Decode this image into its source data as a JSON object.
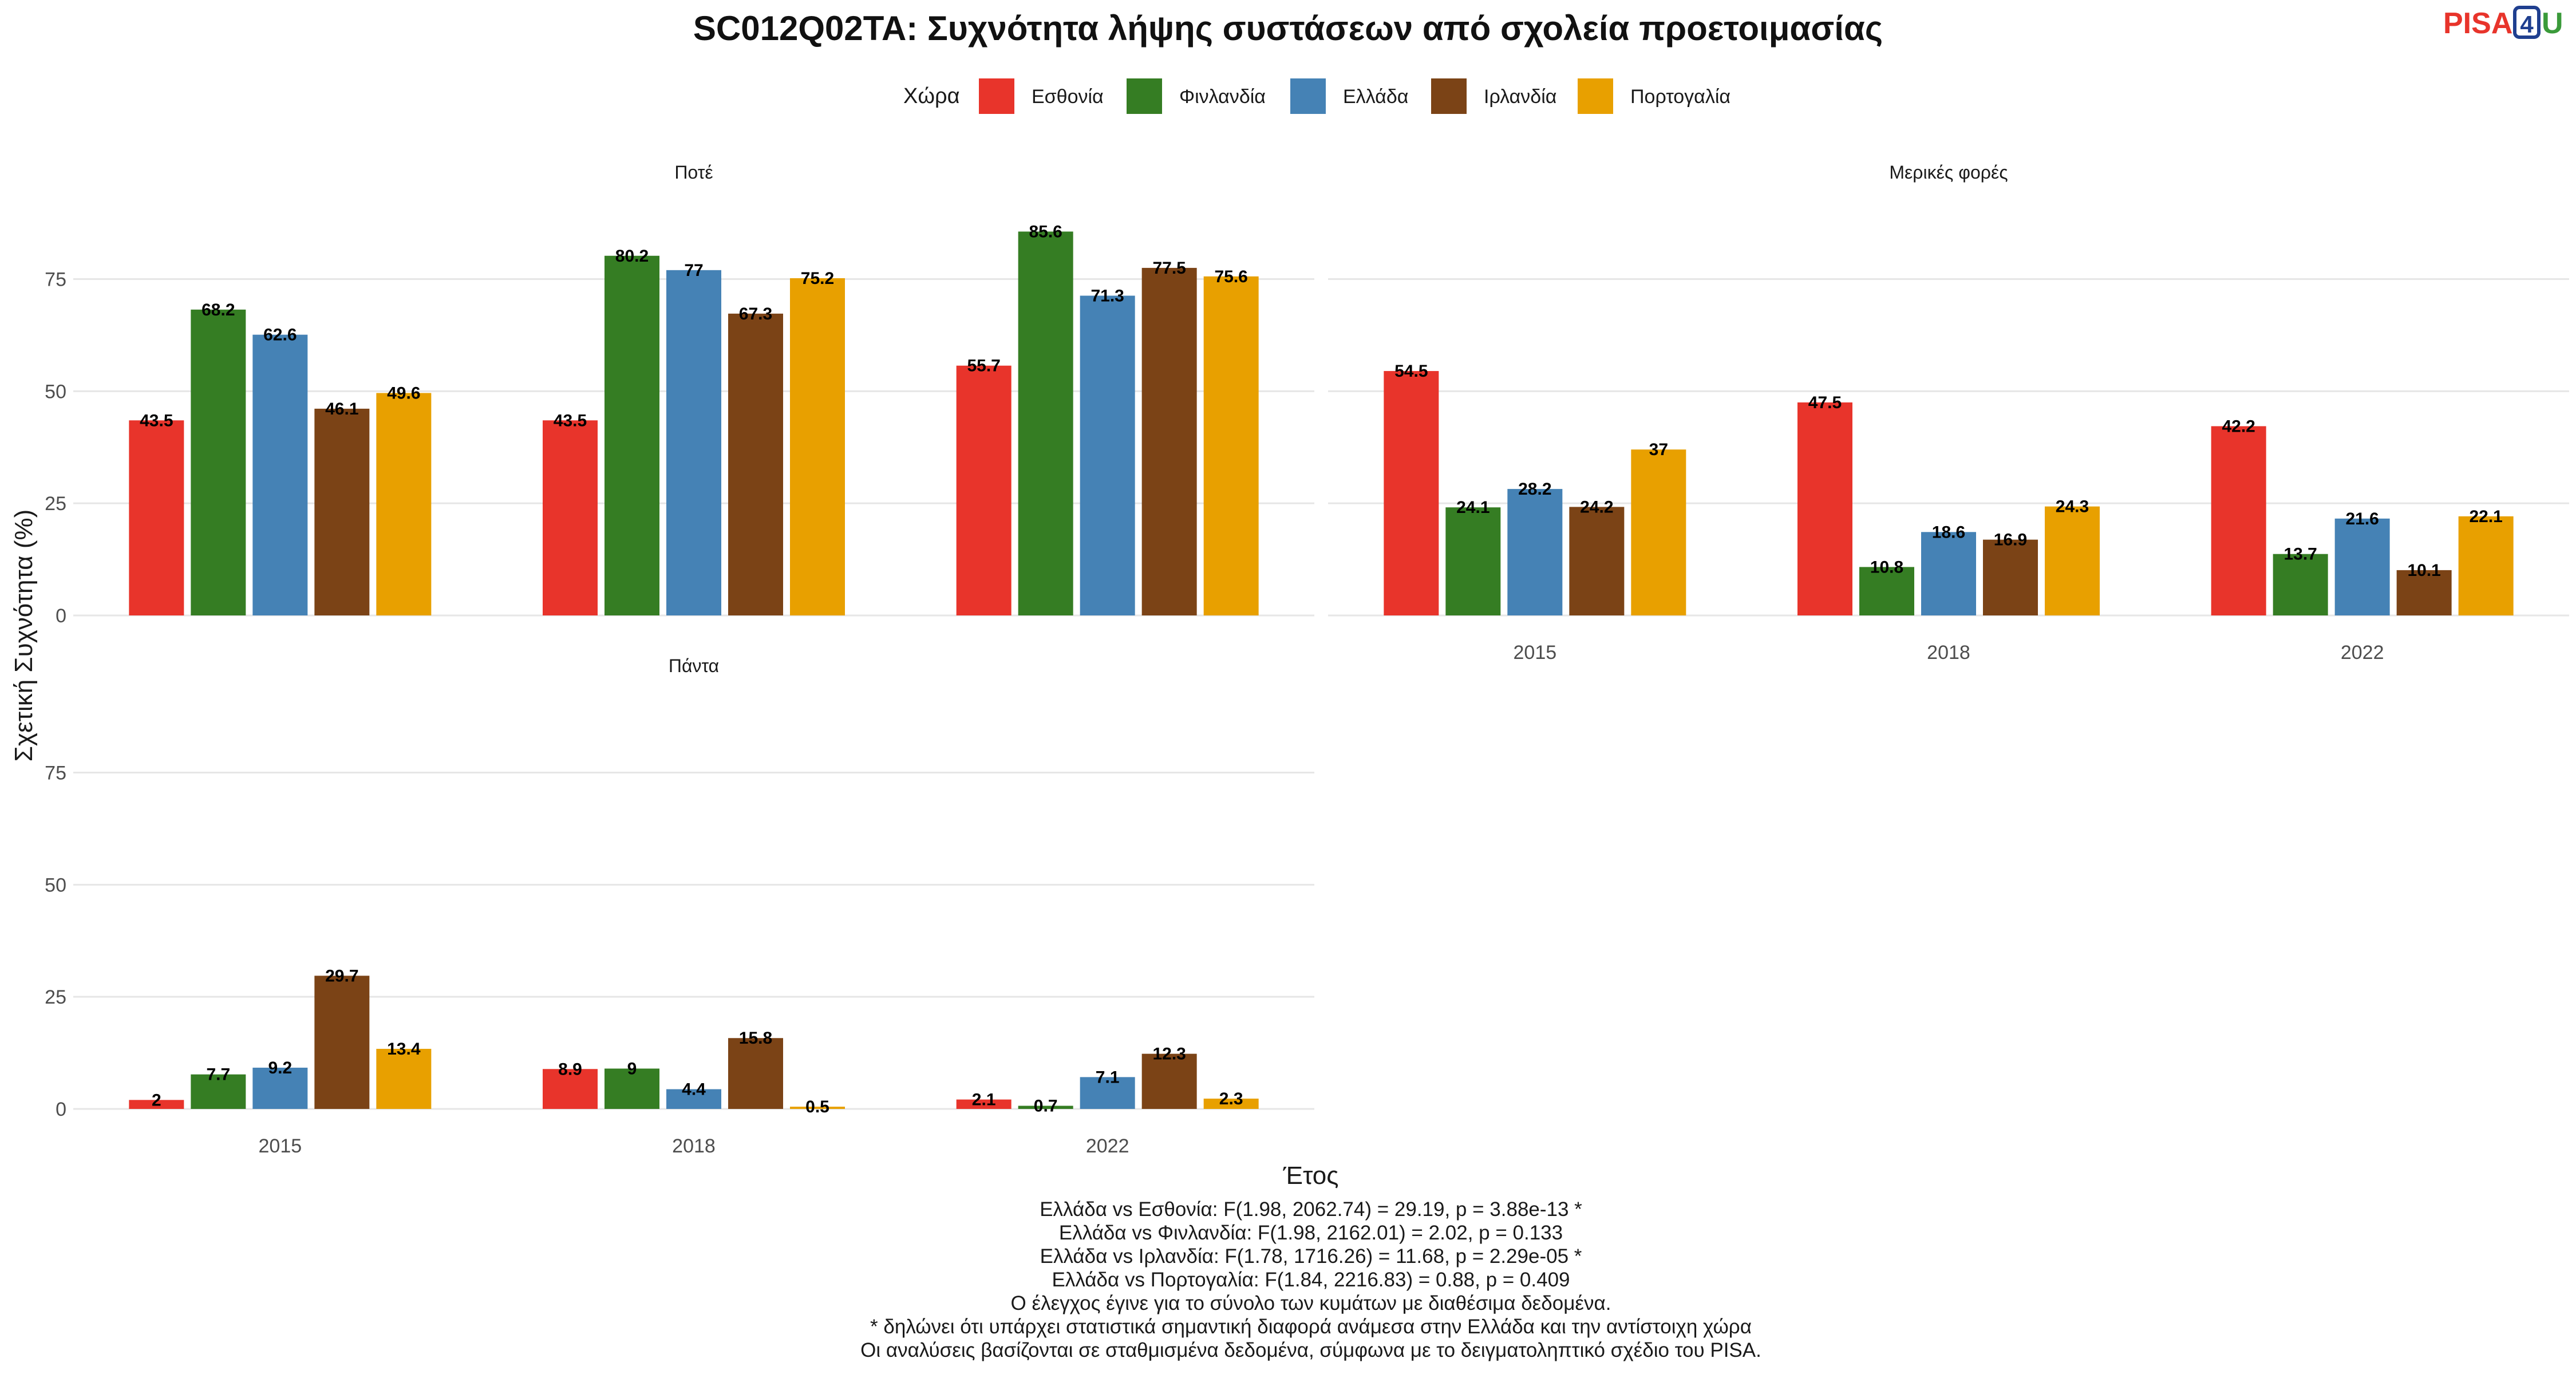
{
  "chart_data": {
    "type": "bar",
    "title": "SC012Q02TA: Συχνότητα λήψης συστάσεων από σχολεία προετοιμασίας",
    "xlabel": "Έτος",
    "ylabel": "Σχετική Συχνότητα (%)",
    "ylim": [
      0,
      90
    ],
    "yticks": [
      0,
      25,
      50,
      75
    ],
    "grid": true,
    "legend": {
      "title": "Χώρα",
      "placement": "top",
      "entries": [
        "Εσθονία",
        "Φινλανδία",
        "Ελλάδα",
        "Ιρλανδία",
        "Πορτογαλία"
      ]
    },
    "categories": [
      "2015",
      "2018",
      "2022"
    ],
    "colors": {
      "Εσθονία": "#e8342b",
      "Φινλανδία": "#357d23",
      "Ελλάδα": "#4582b5",
      "Ιρλανδία": "#7b4316",
      "Πορτογαλία": "#e8a000"
    },
    "panels": [
      {
        "name": "Ποτέ",
        "series": [
          {
            "name": "Εσθονία",
            "values": [
              43.5,
              43.5,
              55.7
            ]
          },
          {
            "name": "Φινλανδία",
            "values": [
              68.2,
              80.2,
              85.6
            ]
          },
          {
            "name": "Ελλάδα",
            "values": [
              62.6,
              77,
              71.3
            ]
          },
          {
            "name": "Ιρλανδία",
            "values": [
              46.1,
              67.3,
              77.5
            ]
          },
          {
            "name": "Πορτογαλία",
            "values": [
              49.6,
              75.2,
              75.6
            ]
          }
        ]
      },
      {
        "name": "Μερικές φορές",
        "series": [
          {
            "name": "Εσθονία",
            "values": [
              54.5,
              47.5,
              42.2
            ]
          },
          {
            "name": "Φινλανδία",
            "values": [
              24.1,
              10.8,
              13.7
            ]
          },
          {
            "name": "Ελλάδα",
            "values": [
              28.2,
              18.6,
              21.6
            ]
          },
          {
            "name": "Ιρλανδία",
            "values": [
              24.2,
              16.9,
              10.1
            ]
          },
          {
            "name": "Πορτογαλία",
            "values": [
              37,
              24.3,
              22.1
            ]
          }
        ]
      },
      {
        "name": "Πάντα",
        "series": [
          {
            "name": "Εσθονία",
            "values": [
              2,
              8.9,
              2.1
            ]
          },
          {
            "name": "Φινλανδία",
            "values": [
              7.7,
              9,
              0.7
            ]
          },
          {
            "name": "Ελλάδα",
            "values": [
              9.2,
              4.4,
              7.1
            ]
          },
          {
            "name": "Ιρλανδία",
            "values": [
              29.7,
              15.8,
              12.3
            ]
          },
          {
            "name": "Πορτογαλία",
            "values": [
              13.4,
              0.5,
              2.3
            ]
          }
        ]
      }
    ]
  },
  "logo": {
    "text_left": "PISA",
    "text_box": "4",
    "text_right": "U",
    "colors": {
      "left": "#e8342b",
      "box": "#1f3f8f",
      "right": "#3a9a3a"
    }
  },
  "footnotes": [
    "Ελλάδα vs Εσθονία: F(1.98, 2062.74) = 29.19, p = 3.88e-13 *",
    "Ελλάδα vs Φινλανδία: F(1.98, 2162.01) = 2.02, p = 0.133",
    "Ελλάδα vs Ιρλανδία: F(1.78, 1716.26) = 11.68, p = 2.29e-05 *",
    "Ελλάδα vs Πορτογαλία: F(1.84, 2216.83) = 0.88, p = 0.409",
    "Ο έλεγχος έγινε για το σύνολο των κυμάτων με διαθέσιμα δεδομένα.",
    "* δηλώνει ότι υπάρχει στατιστικά σημαντική διαφορά ανάμεσα στην Ελλάδα και την αντίστοιχη χώρα",
    "Οι αναλύσεις βασίζονται σε σταθμισμένα δεδομένα, σύμφωνα με το δειγματοληπτικό σχέδιο του PISA."
  ]
}
